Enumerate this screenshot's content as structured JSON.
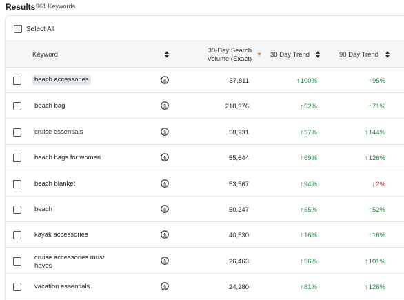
{
  "header": {
    "title": "Results",
    "count": "961 Keywords"
  },
  "select_all_label": "Select All",
  "columns": {
    "keyword": "Keyword",
    "volume_line1": "30-Day Search",
    "volume_line2": "Volume (Exact)",
    "trend30": "30 Day Trend",
    "trend90": "90 Day Trend"
  },
  "colors": {
    "up": "#1f8a3b",
    "down": "#d42c2c",
    "sort_active": "#e8622a"
  },
  "icons": {
    "marketplace": "amazon-icon",
    "sort": "sort-icon",
    "up": "arrow-up-icon",
    "down": "arrow-down-icon"
  },
  "rows": [
    {
      "keyword": "beach accessories",
      "volume": "57,811",
      "trend30": "100%",
      "trend30_dir": "up",
      "trend90": "95%",
      "trend90_dir": "up",
      "highlighted": true
    },
    {
      "keyword": "beach bag",
      "volume": "218,376",
      "trend30": "52%",
      "trend30_dir": "up",
      "trend90": "71%",
      "trend90_dir": "up"
    },
    {
      "keyword": "cruise essentials",
      "volume": "58,931",
      "trend30": "57%",
      "trend30_dir": "up",
      "trend90": "144%",
      "trend90_dir": "up"
    },
    {
      "keyword": "beach bags for women",
      "volume": "55,644",
      "trend30": "69%",
      "trend30_dir": "up",
      "trend90": "126%",
      "trend90_dir": "up"
    },
    {
      "keyword": "beach blanket",
      "volume": "53,567",
      "trend30": "94%",
      "trend30_dir": "up",
      "trend90": "2%",
      "trend90_dir": "down"
    },
    {
      "keyword": "beach",
      "volume": "50,247",
      "trend30": "65%",
      "trend30_dir": "up",
      "trend90": "52%",
      "trend90_dir": "up"
    },
    {
      "keyword": "kayak accessories",
      "volume": "40,530",
      "trend30": "16%",
      "trend30_dir": "up",
      "trend90": "16%",
      "trend90_dir": "up"
    },
    {
      "keyword": "cruise accessories must haves",
      "keyword_line1": "cruise accessories must",
      "keyword_line2": "haves",
      "volume": "26,463",
      "trend30": "56%",
      "trend30_dir": "up",
      "trend90": "101%",
      "trend90_dir": "up"
    },
    {
      "keyword": "vacation essentials",
      "volume": "24,280",
      "trend30": "81%",
      "trend30_dir": "up",
      "trend90": "126%",
      "trend90_dir": "up"
    }
  ]
}
